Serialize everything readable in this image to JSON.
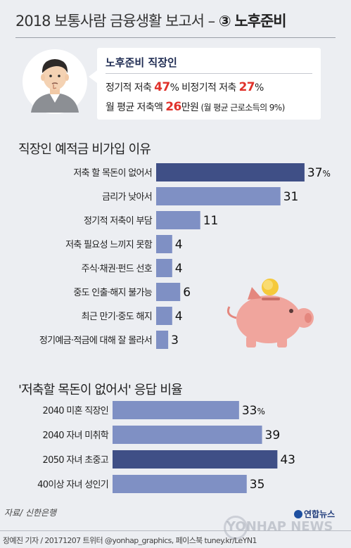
{
  "header": {
    "title_prefix": "2018 보통사람 금융생활 보고서 –",
    "title_number": "③",
    "title_topic": "노후준비"
  },
  "info": {
    "title": "노후준비 직장인",
    "regular_label": "정기적 저축 ",
    "regular_value": "47",
    "irregular_label": " 비정기적 저축 ",
    "irregular_value": "27",
    "percent": "%",
    "monthly_label": "월 평균 저축액 ",
    "monthly_value": "26",
    "monthly_unit": "만원",
    "monthly_note": " (월 평균 근로소득의 9%)"
  },
  "colors": {
    "bar": "#7f90c4",
    "bar_highlight": "#3f4f86",
    "piggy": "#f0a59d",
    "coin": "#f5c93c"
  },
  "chart_data": [
    {
      "type": "bar",
      "orientation": "horizontal",
      "title": "직장인 예적금 비가입 이유",
      "categories": [
        "저축 할 목돈이 없어서",
        "금리가 낮아서",
        "정기적 저축이 부담",
        "저축 필요성 느끼지 못함",
        "주식·채권·펀드 선호",
        "중도 인출·해지 불가능",
        "최근 만기·중도 해지",
        "정기예금·적금에 대해 잘 몰라서"
      ],
      "values": [
        37,
        31,
        11,
        4,
        4,
        6,
        4,
        3
      ],
      "value_labels": [
        "37%",
        "31",
        "11",
        "4",
        "4",
        "6",
        "4",
        "3"
      ],
      "highlight_index": 0
    },
    {
      "type": "bar",
      "orientation": "horizontal",
      "title": "'저축할 목돈이 없어서' 응답 비율",
      "categories": [
        "2040 미혼 직장인",
        "2040 자녀 미취학",
        "2050 자녀 초중고",
        "40이상 자녀 성인기"
      ],
      "values": [
        33,
        39,
        43,
        35
      ],
      "value_labels": [
        "33%",
        "39",
        "43",
        "35"
      ],
      "highlight_index": 2
    }
  ],
  "footer": {
    "source": "자료/ 신한은행",
    "credit": "장예진 기자 / 20171207 트위터 @yonhap_graphics, 페이스북 tuney.kr/LeYN1",
    "logo": "연합뉴스",
    "watermark": "YONHAP NEWS"
  }
}
